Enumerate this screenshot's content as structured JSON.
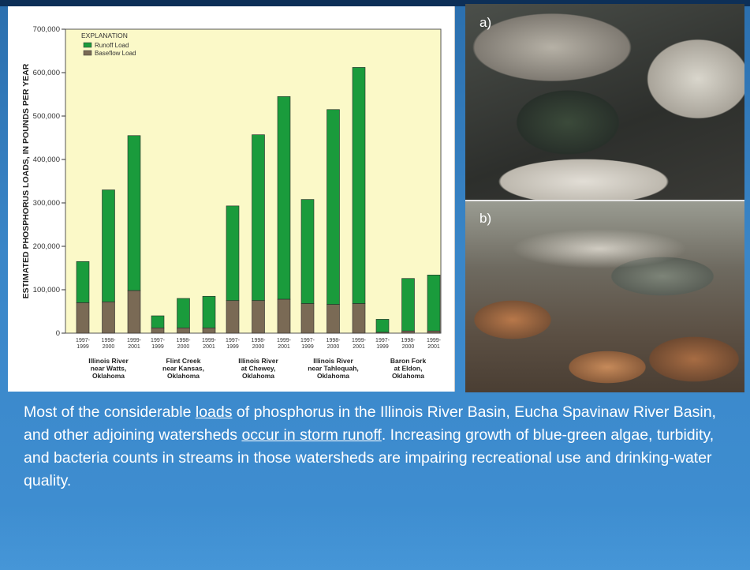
{
  "chart_data": {
    "type": "bar",
    "stacked": true,
    "ylabel": "ESTIMATED PHOSPHORUS LOADS, IN POUNDS PER YEAR",
    "ylim": [
      0,
      700000
    ],
    "yticks": [
      "0",
      "100,000",
      "200,000",
      "300,000",
      "400,000",
      "500,000",
      "600,000",
      "700,000"
    ],
    "ytick_values": [
      0,
      100000,
      200000,
      300000,
      400000,
      500000,
      600000,
      700000
    ],
    "legend_title": "EXPLANATION",
    "legend_position": "top-left",
    "series": [
      {
        "name": "Runoff Load",
        "color": "#1a9b3c"
      },
      {
        "name": "Baseflow Load",
        "color": "#7a6a55"
      }
    ],
    "groups": [
      {
        "label_lines": [
          "Illinois River",
          "near Watts,",
          "Oklahoma"
        ],
        "bars": [
          {
            "period": [
              "1997-",
              "1999"
            ],
            "total": 165000,
            "baseflow": 70000
          },
          {
            "period": [
              "1998-",
              "2000"
            ],
            "total": 330000,
            "baseflow": 72000
          },
          {
            "period": [
              "1999-",
              "2001"
            ],
            "total": 455000,
            "baseflow": 98000
          }
        ]
      },
      {
        "label_lines": [
          "Flint Creek",
          "near Kansas,",
          "Oklahoma"
        ],
        "bars": [
          {
            "period": [
              "1997-",
              "1999"
            ],
            "total": 40000,
            "baseflow": 12000
          },
          {
            "period": [
              "1998-",
              "2000"
            ],
            "total": 80000,
            "baseflow": 12000
          },
          {
            "period": [
              "1999-",
              "2001"
            ],
            "total": 85000,
            "baseflow": 12000
          }
        ]
      },
      {
        "label_lines": [
          "Illinois River",
          "at Chewey,",
          "Oklahoma"
        ],
        "bars": [
          {
            "period": [
              "1997-",
              "1999"
            ],
            "total": 293000,
            "baseflow": 75000
          },
          {
            "period": [
              "1998-",
              "2000"
            ],
            "total": 457000,
            "baseflow": 75000
          },
          {
            "period": [
              "1999-",
              "2001"
            ],
            "total": 545000,
            "baseflow": 78000
          }
        ]
      },
      {
        "label_lines": [
          "Illinois River",
          "near Tahlequah,",
          "Oklahoma"
        ],
        "bars": [
          {
            "period": [
              "1997-",
              "1999"
            ],
            "total": 308000,
            "baseflow": 68000
          },
          {
            "period": [
              "1998-",
              "2000"
            ],
            "total": 515000,
            "baseflow": 66000
          },
          {
            "period": [
              "1999-",
              "2001"
            ],
            "total": 612000,
            "baseflow": 68000
          }
        ]
      },
      {
        "label_lines": [
          "Baron Fork",
          "at Eldon,",
          "Oklahoma"
        ],
        "bars": [
          {
            "period": [
              "1997-",
              "1999"
            ],
            "total": 32000,
            "baseflow": 2000
          },
          {
            "period": [
              "1998-",
              "2000"
            ],
            "total": 126000,
            "baseflow": 5000
          },
          {
            "period": [
              "1999-",
              "2001"
            ],
            "total": 134000,
            "baseflow": 5000
          }
        ]
      }
    ]
  },
  "photos": {
    "a_label": "a)",
    "b_label": "b)"
  },
  "caption": {
    "p1": "Most of the considerable ",
    "u1": "loads",
    "p2": " of phosphorus in the Illinois River Basin, Eucha Spavinaw River Basin, and other adjoining watersheds ",
    "u2": "occur in storm runoff",
    "p3": ". Increasing growth of blue-green algae, turbidity, and bacteria counts in streams in those watersheds are impairing recreational use and drinking-water quality."
  }
}
